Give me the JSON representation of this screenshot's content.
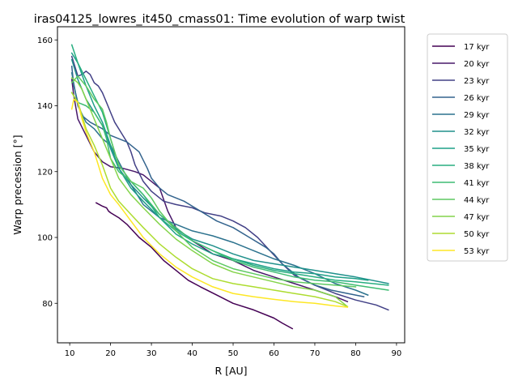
{
  "chart_data": {
    "type": "line",
    "title": "iras04125_lowres_it450_cmass01: Time evolution of warp twist",
    "xlabel": "R [AU]",
    "ylabel": "Warp precession [°]",
    "xlim": [
      7,
      92
    ],
    "ylim": [
      68,
      164
    ],
    "xticks": [
      10,
      20,
      30,
      40,
      50,
      60,
      70,
      80,
      90
    ],
    "yticks": [
      80,
      100,
      120,
      140,
      160
    ],
    "grid": false,
    "legend_position": "outside-right",
    "series": [
      {
        "name": "17 kyr",
        "color": "#440154",
        "x": [
          16.5,
          18,
          19,
          19.5,
          20,
          22,
          24,
          27,
          30,
          33,
          36,
          39,
          42,
          46,
          50,
          55,
          60,
          62,
          64.5
        ],
        "y": [
          110.5,
          109.5,
          109,
          108,
          107.5,
          106,
          104,
          100,
          97,
          93,
          90,
          87,
          85,
          82.5,
          80,
          78,
          75.5,
          74,
          72.3
        ]
      },
      {
        "name": "20 kyr",
        "color": "#48186a",
        "x": [
          10.5,
          11,
          12,
          14,
          16,
          18,
          20,
          23,
          26,
          28,
          30,
          32,
          34,
          36,
          40,
          45,
          50,
          55,
          60,
          65,
          70,
          75,
          78
        ],
        "y": [
          148,
          143,
          136,
          131,
          126,
          123,
          121.5,
          121,
          120,
          119,
          117,
          115,
          108,
          103,
          99,
          95,
          93,
          90,
          88,
          86,
          84,
          82,
          80.5
        ]
      },
      {
        "name": "23 kyr",
        "color": "#424086",
        "x": [
          10.5,
          11,
          12,
          13,
          14,
          15,
          16,
          17,
          18,
          19,
          20,
          21,
          22,
          23,
          24,
          25,
          26,
          28,
          30,
          33,
          36,
          40,
          43,
          47,
          50,
          53,
          56,
          59,
          62,
          65,
          70,
          75,
          80,
          85,
          88
        ],
        "y": [
          155,
          153,
          149,
          149.5,
          150.5,
          149.5,
          147,
          146,
          144,
          141,
          138,
          135,
          133,
          131,
          129,
          126,
          122,
          117,
          114,
          111,
          110,
          109,
          107.5,
          106.5,
          105,
          103,
          100,
          96,
          92,
          88.5,
          85.5,
          83,
          81,
          79.5,
          78
        ]
      },
      {
        "name": "26 kyr",
        "color": "#33638d",
        "x": [
          10.5,
          11,
          12,
          13,
          15,
          18,
          20,
          24,
          27,
          29,
          30,
          32,
          34,
          38,
          42,
          46,
          50,
          54,
          58,
          60,
          62,
          66,
          70,
          74,
          78,
          82
        ],
        "y": [
          152,
          146,
          141,
          137,
          135,
          133,
          131,
          129,
          126,
          121,
          118,
          115,
          113,
          111,
          108,
          105,
          103,
          100,
          97,
          95,
          92,
          88,
          85.5,
          84,
          83,
          82
        ]
      },
      {
        "name": "29 kyr",
        "color": "#2c728e",
        "x": [
          10.5,
          12,
          14,
          16,
          18,
          20,
          22,
          25,
          28,
          32,
          36,
          40,
          45,
          50,
          55,
          60,
          65,
          70,
          75,
          80,
          83
        ],
        "y": [
          150,
          140,
          135,
          133,
          130,
          128,
          123,
          116,
          110,
          106,
          104,
          102,
          100.5,
          98.5,
          96,
          93.5,
          91.5,
          89,
          86,
          84,
          82.5
        ]
      },
      {
        "name": "32 kyr",
        "color": "#21918c",
        "x": [
          10.5,
          12,
          14,
          16,
          18,
          20,
          22,
          25,
          28,
          32,
          36,
          40,
          45,
          50,
          55,
          60,
          65,
          70,
          75,
          80,
          88
        ],
        "y": [
          154,
          148,
          142,
          138,
          134,
          127,
          121,
          116,
          112,
          107,
          102.5,
          99.5,
          97.5,
          95,
          93,
          92,
          91,
          90,
          89,
          88,
          86
        ]
      },
      {
        "name": "35 kyr",
        "color": "#1fa088",
        "x": [
          10.5,
          12,
          14,
          16,
          18,
          20,
          22,
          25,
          28,
          32,
          36,
          40,
          45,
          50,
          55,
          60,
          65,
          70,
          75,
          80,
          83
        ],
        "y": [
          156,
          153,
          146,
          140,
          135,
          128,
          121,
          115,
          111,
          106,
          101,
          98,
          95,
          93.5,
          92,
          90.5,
          89.5,
          89,
          88,
          87.5,
          87
        ]
      },
      {
        "name": "38 kyr",
        "color": "#28ae80",
        "x": [
          10.5,
          12,
          14,
          16,
          18,
          20,
          22,
          25,
          28,
          32,
          36,
          40,
          45,
          50,
          55,
          60,
          65,
          70,
          75,
          80,
          88
        ],
        "y": [
          158.5,
          153,
          148,
          143,
          138,
          130,
          122,
          117,
          113,
          106,
          102,
          99,
          96,
          93.5,
          91.5,
          90,
          89,
          88,
          87,
          86.5,
          85.5
        ]
      },
      {
        "name": "41 kyr",
        "color": "#3fbc73",
        "x": [
          10.5,
          12,
          14,
          16,
          18,
          19,
          20,
          22,
          25,
          28,
          32,
          36,
          40,
          45,
          50,
          55,
          60,
          65,
          70,
          75,
          80,
          88
        ],
        "y": [
          144,
          141,
          140,
          138,
          134,
          130,
          124,
          120,
          117,
          113,
          107,
          103,
          99,
          96,
          93,
          91,
          89.5,
          88,
          87,
          86.5,
          85.5,
          84
        ]
      },
      {
        "name": "44 kyr",
        "color": "#5ec962",
        "x": [
          10.5,
          12,
          14,
          16,
          18,
          19,
          20,
          22,
          25,
          28,
          30,
          32,
          36,
          40,
          45,
          50,
          55,
          60,
          65,
          70,
          75,
          80
        ],
        "y": [
          147,
          149,
          146,
          142,
          139,
          135,
          130,
          122,
          117,
          115,
          112,
          108,
          102,
          97,
          93,
          90.5,
          89,
          87.5,
          86.5,
          86,
          85.5,
          85
        ]
      },
      {
        "name": "47 kyr",
        "color": "#84d44b",
        "x": [
          10.5,
          11,
          12,
          13,
          14,
          16,
          18,
          20,
          22,
          25,
          28,
          32,
          36,
          40,
          45,
          50,
          55,
          60,
          65,
          70,
          75,
          78
        ],
        "y": [
          148.5,
          148,
          147,
          145,
          142,
          136,
          130,
          124,
          118,
          113,
          109,
          104,
          99.5,
          96,
          92,
          89.5,
          88,
          86.5,
          85,
          84,
          82,
          79
        ]
      },
      {
        "name": "50 kyr",
        "color": "#addc30",
        "x": [
          10.5,
          11,
          12,
          13,
          14,
          16,
          18,
          20,
          22,
          25,
          28,
          32,
          36,
          40,
          45,
          50,
          55,
          60,
          65,
          70,
          75,
          78
        ],
        "y": [
          144,
          143,
          141,
          137,
          133,
          128,
          122,
          115,
          111,
          107,
          103,
          98,
          94,
          90.5,
          87.5,
          86,
          85,
          84,
          83,
          82,
          80.5,
          79
        ]
      },
      {
        "name": "53 kyr",
        "color": "#fde725",
        "x": [
          10.5,
          11,
          12,
          13,
          14,
          16,
          18,
          20,
          22,
          25,
          28,
          32,
          36,
          40,
          45,
          50,
          55,
          60,
          65,
          70,
          75,
          78
        ],
        "y": [
          139,
          142,
          141,
          136,
          132,
          126,
          118,
          113,
          110,
          105,
          100,
          95,
          91,
          88,
          85,
          83,
          82,
          81.2,
          80.5,
          80,
          79.2,
          78.8
        ]
      }
    ]
  }
}
